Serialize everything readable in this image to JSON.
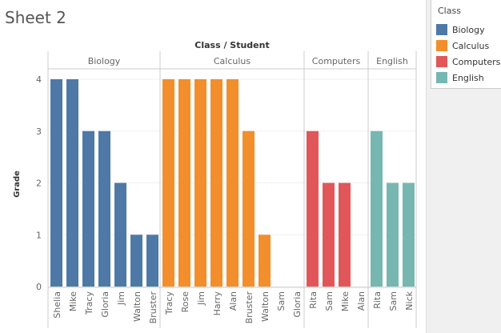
{
  "sheet_title": "Sheet 2",
  "chart_data": {
    "type": "bar",
    "title": "Class / Student",
    "ylabel": "Grade",
    "ylim": [
      0,
      4
    ],
    "yticks": [
      0,
      1,
      2,
      3,
      4
    ],
    "grid": true,
    "legend_position": "right",
    "legend_title": "Class",
    "groups": [
      {
        "name": "Biology",
        "color": "#4e79a7",
        "categories": [
          "Shelia",
          "Mike",
          "Tracy",
          "Gloria",
          "Jim",
          "Walton",
          "Bruster"
        ],
        "values": [
          4,
          4,
          3,
          3,
          2,
          1,
          1
        ]
      },
      {
        "name": "Calculus",
        "color": "#f28e2b",
        "categories": [
          "Tracy",
          "Rose",
          "Jim",
          "Harry",
          "Alan",
          "Bruster",
          "Walton",
          "Sam",
          "Gloria"
        ],
        "values": [
          4,
          4,
          4,
          4,
          4,
          3,
          1,
          0,
          0
        ]
      },
      {
        "name": "Computers",
        "color": "#e15759",
        "categories": [
          "Rita",
          "Sam",
          "Mike",
          "Alan"
        ],
        "values": [
          3,
          2,
          2,
          0
        ]
      },
      {
        "name": "English",
        "color": "#76b7b2",
        "categories": [
          "Rita",
          "Sam",
          "Nick"
        ],
        "values": [
          3,
          2,
          2
        ]
      }
    ]
  }
}
